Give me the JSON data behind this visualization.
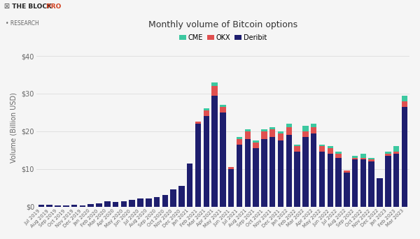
{
  "title": "Monthly volume of Bitcoin options",
  "ylabel": "Volume (Billion USD)",
  "bg_color": "#f5f5f5",
  "plot_bg_color": "#f5f5f5",
  "grid_color": "#dddddd",
  "bar_color_deribit": "#1e1e6e",
  "bar_color_okx": "#e05050",
  "bar_color_cme": "#3cc8a0",
  "labels": [
    "Jul 2019",
    "Aug 2019",
    "Sep 2019",
    "Oct 2019",
    "Nov 2019",
    "Dec 2019",
    "Jan 2020",
    "Feb 2020",
    "Mar 2020",
    "Apr 2020",
    "May 2020",
    "Jun 2020",
    "Jul 2020",
    "Aug 2020",
    "Sep 2020",
    "Oct 2020",
    "Nov 2020",
    "Dec 2020",
    "Jan 2021",
    "Feb 2021",
    "Mar 2021",
    "Apr 2021",
    "May 2021",
    "Jun 2021",
    "Jul 2021",
    "Aug 2021",
    "Sep 2021",
    "Oct 2021",
    "Nov 2021",
    "Dec 2021",
    "Jan 2022",
    "Feb 2022",
    "Mar 2022",
    "Apr 2022",
    "May 2022",
    "Jun 2022",
    "Jul 2022",
    "Aug 2022",
    "Sep 2022",
    "Oct 2022",
    "Nov 2022",
    "Dec 2022",
    "Jan 2023",
    "Feb 2023",
    "Mar 2023"
  ],
  "deribit": [
    0.5,
    0.5,
    0.4,
    0.4,
    0.5,
    0.4,
    0.6,
    0.8,
    1.5,
    1.2,
    1.5,
    1.8,
    2.2,
    2.2,
    2.5,
    3.0,
    4.5,
    5.5,
    11.5,
    22.0,
    24.0,
    29.5,
    25.0,
    10.0,
    16.5,
    18.0,
    15.5,
    18.0,
    18.5,
    17.5,
    19.0,
    14.5,
    18.5,
    19.5,
    14.5,
    14.0,
    13.0,
    9.0,
    12.5,
    12.5,
    12.0,
    7.5,
    13.5,
    14.0,
    26.5
  ],
  "okx": [
    0.0,
    0.0,
    0.0,
    0.0,
    0.0,
    0.0,
    0.0,
    0.0,
    0.0,
    0.0,
    0.0,
    0.0,
    0.0,
    0.0,
    0.0,
    0.0,
    0.0,
    0.0,
    0.0,
    0.5,
    1.5,
    2.5,
    1.5,
    0.5,
    1.5,
    2.0,
    1.5,
    2.0,
    2.0,
    2.0,
    2.0,
    1.5,
    1.5,
    1.5,
    1.5,
    1.5,
    1.0,
    0.5,
    0.5,
    0.5,
    0.5,
    0.0,
    0.5,
    0.5,
    1.5
  ],
  "cme": [
    0.0,
    0.0,
    0.0,
    0.0,
    0.0,
    0.0,
    0.0,
    0.0,
    0.0,
    0.0,
    0.0,
    0.0,
    0.0,
    0.0,
    0.0,
    0.0,
    0.0,
    0.0,
    0.0,
    0.0,
    0.5,
    1.0,
    0.5,
    0.0,
    0.5,
    0.5,
    0.5,
    0.5,
    0.5,
    0.5,
    1.0,
    0.5,
    1.5,
    1.0,
    0.5,
    0.5,
    0.5,
    0.0,
    0.5,
    1.0,
    0.5,
    0.0,
    0.5,
    1.5,
    1.5
  ],
  "yticks": [
    0,
    10,
    20,
    30,
    40
  ],
  "ylim": [
    0,
    42
  ],
  "logo_text1": "☒ THE BLOCK",
  "logo_text1b": " PRO",
  "logo_text2": "• RESEARCH",
  "text_color": "#333333",
  "label_color": "#666666"
}
